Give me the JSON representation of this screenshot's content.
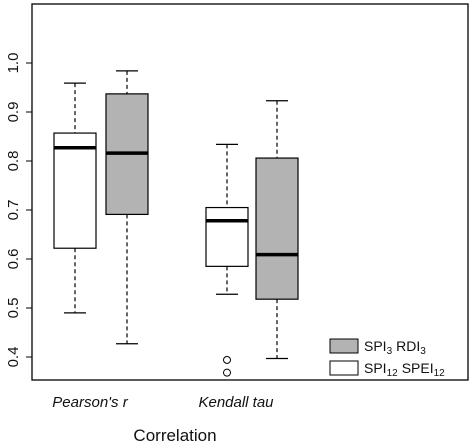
{
  "chart_data": {
    "type": "boxplot",
    "title": "",
    "xlabel": "Correlation",
    "ylabel": "",
    "ylim": [
      0.35,
      1.0
    ],
    "yticks": [
      0.4,
      0.5,
      0.6,
      0.7,
      0.8,
      0.9,
      1.0
    ],
    "ytick_labels": [
      "0.4",
      "0.5",
      "0.6",
      "0.7",
      "0.8",
      "0.9",
      "1.0"
    ],
    "categories": [
      "Pearson's r",
      "Kendall tau"
    ],
    "grid": false,
    "legend_position": "bottom-right",
    "series": [
      {
        "name": "SPI12 SPEI12",
        "legend_label": {
          "base1": "SPI",
          "sub1": "12",
          "base2": "SPEI",
          "sub2": "12"
        },
        "color": "#ffffff",
        "boxes": [
          {
            "category": "Pearson's r",
            "whisker_low": 0.49,
            "q1": 0.622,
            "median": 0.827,
            "q3": 0.857,
            "whisker_high": 0.959,
            "outliers": []
          },
          {
            "category": "Kendall tau",
            "whisker_low": 0.528,
            "q1": 0.585,
            "median": 0.678,
            "q3": 0.705,
            "whisker_high": 0.834,
            "outliers": [
              0.394,
              0.368
            ]
          }
        ]
      },
      {
        "name": "SPI3 RDI3",
        "legend_label": {
          "base1": "SPI",
          "sub1": "3",
          "base2": "RDI",
          "sub2": "3"
        },
        "color": "#b3b3b3",
        "boxes": [
          {
            "category": "Pearson's r",
            "whisker_low": 0.427,
            "q1": 0.691,
            "median": 0.816,
            "q3": 0.937,
            "whisker_high": 0.984,
            "outliers": []
          },
          {
            "category": "Kendall tau",
            "whisker_low": 0.397,
            "q1": 0.518,
            "median": 0.609,
            "q3": 0.806,
            "whisker_high": 0.923,
            "outliers": []
          }
        ]
      }
    ]
  }
}
